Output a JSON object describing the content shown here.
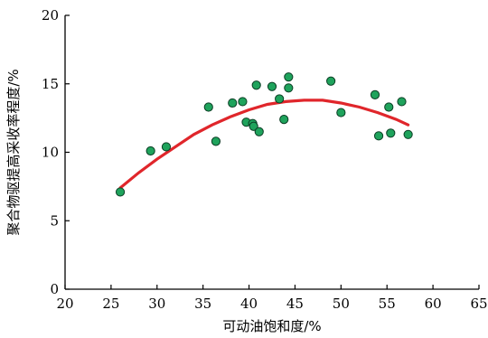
{
  "chart_data": {
    "type": "scatter",
    "title": "",
    "xlabel": "可动油饱和度/%",
    "ylabel": "聚合物驱提高采收率程度/%",
    "xlim": [
      20,
      65
    ],
    "ylim": [
      0,
      20
    ],
    "xticks": [
      20,
      25,
      30,
      35,
      40,
      45,
      50,
      55,
      60,
      65
    ],
    "yticks": [
      0,
      5,
      10,
      15,
      20
    ],
    "grid": false,
    "colors": {
      "point": "#1fa35c",
      "point_edge": "#0b3d24",
      "fit": "#e0262b"
    },
    "points": [
      {
        "x": 26.0,
        "y": 7.1
      },
      {
        "x": 29.3,
        "y": 10.1
      },
      {
        "x": 31.0,
        "y": 10.4
      },
      {
        "x": 35.6,
        "y": 13.3
      },
      {
        "x": 36.4,
        "y": 10.8
      },
      {
        "x": 38.2,
        "y": 13.6
      },
      {
        "x": 39.3,
        "y": 13.7
      },
      {
        "x": 39.7,
        "y": 12.2
      },
      {
        "x": 40.4,
        "y": 12.1
      },
      {
        "x": 40.5,
        "y": 11.9
      },
      {
        "x": 40.8,
        "y": 14.9
      },
      {
        "x": 41.1,
        "y": 11.5
      },
      {
        "x": 42.5,
        "y": 14.8
      },
      {
        "x": 43.3,
        "y": 13.9
      },
      {
        "x": 43.8,
        "y": 12.4
      },
      {
        "x": 44.3,
        "y": 15.5
      },
      {
        "x": 44.3,
        "y": 14.7
      },
      {
        "x": 48.9,
        "y": 15.2
      },
      {
        "x": 50.0,
        "y": 12.9
      },
      {
        "x": 53.7,
        "y": 14.2
      },
      {
        "x": 54.1,
        "y": 11.2
      },
      {
        "x": 55.2,
        "y": 13.3
      },
      {
        "x": 55.4,
        "y": 11.4
      },
      {
        "x": 56.6,
        "y": 13.7
      },
      {
        "x": 57.3,
        "y": 11.3
      }
    ],
    "fit_curve": {
      "type": "quadratic",
      "x": [
        26.0,
        28.0,
        30.0,
        32.0,
        34.0,
        36.0,
        38.0,
        40.0,
        42.0,
        44.0,
        46.0,
        48.0,
        50.0,
        52.0,
        54.0,
        56.0,
        57.3
      ],
      "y": [
        7.4,
        8.5,
        9.5,
        10.4,
        11.3,
        12.0,
        12.6,
        13.1,
        13.5,
        13.7,
        13.8,
        13.8,
        13.6,
        13.3,
        12.9,
        12.4,
        12.0
      ]
    }
  }
}
